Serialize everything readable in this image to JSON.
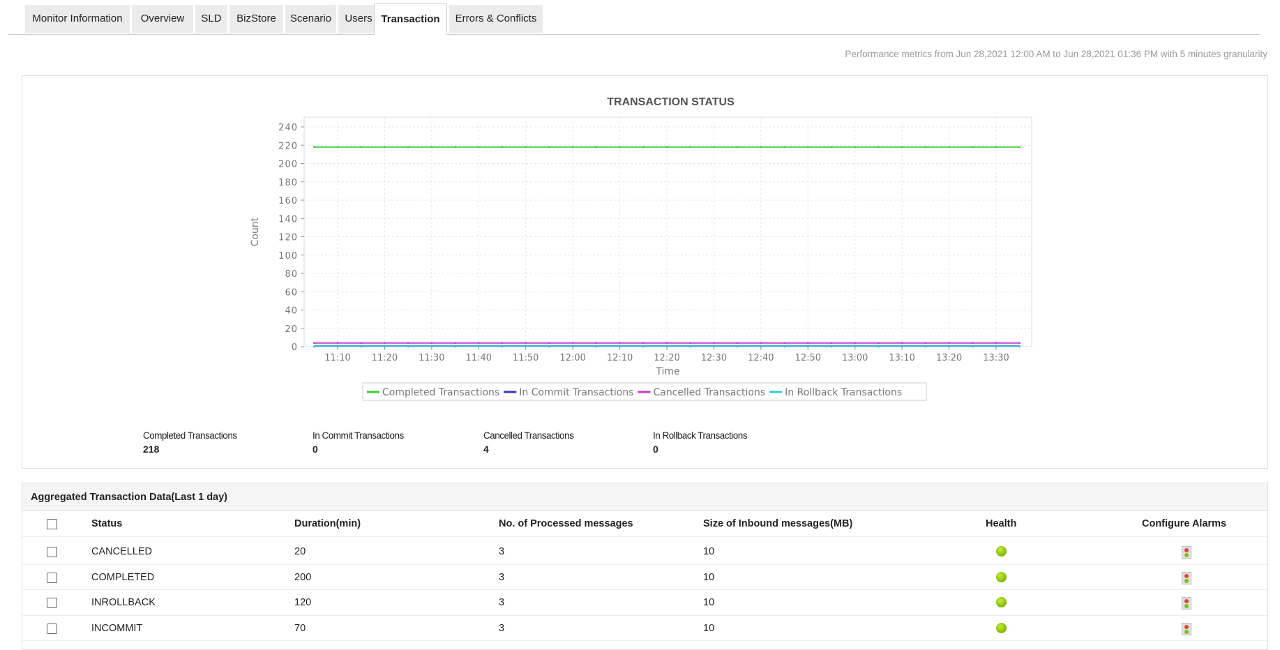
{
  "tabs": [
    {
      "label": "Monitor Information",
      "active": false
    },
    {
      "label": "Overview",
      "active": false
    },
    {
      "label": "SLD",
      "active": false
    },
    {
      "label": "BizStore",
      "active": false
    },
    {
      "label": "Scenario",
      "active": false
    },
    {
      "label": "Users",
      "active": false
    },
    {
      "label": "Transaction",
      "active": true
    },
    {
      "label": "Errors & Conflicts",
      "active": false
    }
  ],
  "performance_text": "Performance metrics from Jun 28,2021 12:00 AM to Jun 28,2021 01:36 PM with 5 minutes granularity",
  "chart_data": {
    "type": "line",
    "title": "TRANSACTION STATUS",
    "xlabel": "Time",
    "ylabel": "Count",
    "ylim": [
      0,
      240
    ],
    "yticks": [
      0,
      20,
      40,
      60,
      80,
      100,
      120,
      140,
      160,
      180,
      200,
      220,
      240
    ],
    "xticks": [
      "11:10",
      "11:20",
      "11:30",
      "11:40",
      "11:50",
      "12:00",
      "12:10",
      "12:20",
      "12:30",
      "12:40",
      "12:50",
      "13:00",
      "13:10",
      "13:20",
      "13:30"
    ],
    "x_range": [
      "11:05",
      "13:35"
    ],
    "x_step_minutes": 5,
    "grid": true,
    "legend_position": "bottom",
    "series": [
      {
        "name": "Completed Transactions",
        "color": "#33cc33",
        "value": 218
      },
      {
        "name": "In Commit Transactions",
        "color": "#3333cc",
        "value": 0
      },
      {
        "name": "Cancelled Transactions",
        "color": "#cc33cc",
        "value": 4
      },
      {
        "name": "In Rollback Transactions",
        "color": "#33cccc",
        "value": 0
      }
    ]
  },
  "summary": [
    {
      "label": "Completed Transactions",
      "value": "218"
    },
    {
      "label": "In Commit Transactions",
      "value": "0"
    },
    {
      "label": "Cancelled Transactions",
      "value": "4"
    },
    {
      "label": "In Rollback Transactions",
      "value": "0"
    }
  ],
  "table": {
    "title": "Aggregated Transaction Data(Last 1 day)",
    "columns": [
      "Status",
      "Duration(min)",
      "No. of Processed messages",
      "Size of Inbound messages(MB)",
      "Health",
      "Configure Alarms"
    ],
    "rows": [
      {
        "status": "CANCELLED",
        "duration": "20",
        "processed": "3",
        "size": "10",
        "health": "ok"
      },
      {
        "status": "COMPLETED",
        "duration": "200",
        "processed": "3",
        "size": "10",
        "health": "ok"
      },
      {
        "status": "INROLLBACK",
        "duration": "120",
        "processed": "3",
        "size": "10",
        "health": "ok"
      },
      {
        "status": "INCOMMIT",
        "duration": "70",
        "processed": "3",
        "size": "10",
        "health": "ok"
      }
    ]
  }
}
